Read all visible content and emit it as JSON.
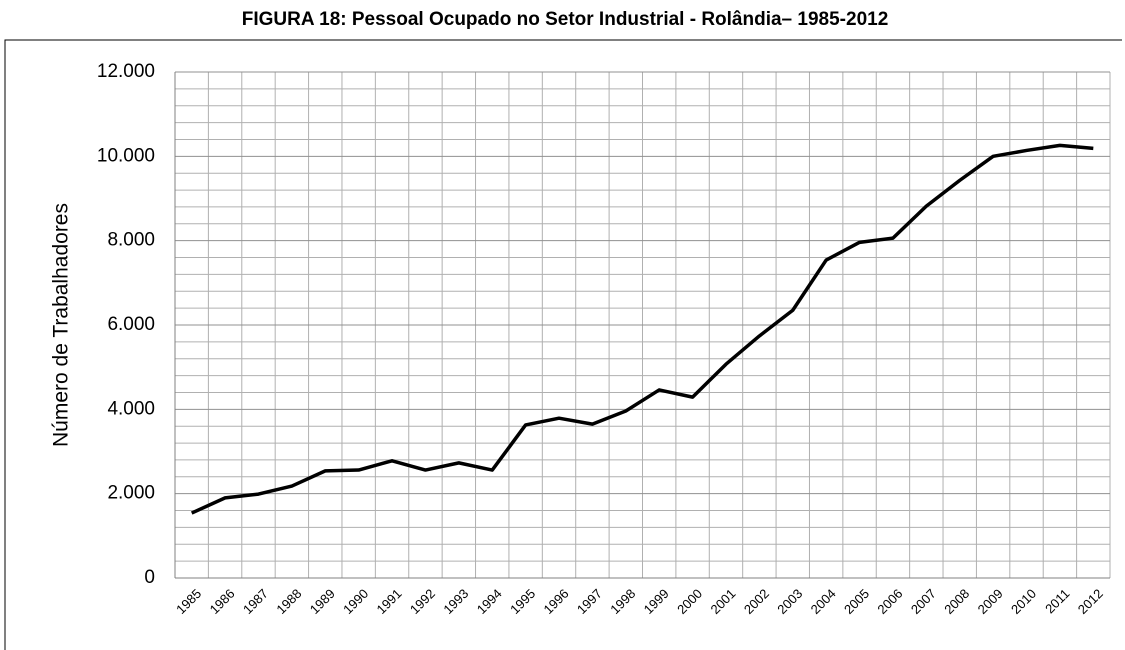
{
  "chart_data": {
    "type": "line",
    "title": "FIGURA 18: Pessoal Ocupado no Setor Industrial - Rolândia– 1985-2012",
    "y_label": "Número de Trabalhadores",
    "categories": [
      "1985",
      "1986",
      "1987",
      "1988",
      "1989",
      "1990",
      "1991",
      "1992",
      "1993",
      "1994",
      "1995",
      "1996",
      "1997",
      "1998",
      "1999",
      "2000",
      "2001",
      "2002",
      "2003",
      "2004",
      "2005",
      "2006",
      "2007",
      "2008",
      "2009",
      "2010",
      "2011",
      "2012"
    ],
    "series": [
      {
        "name": "Pessoal Ocupado",
        "color": "#000000",
        "values": [
          1540,
          1900,
          1990,
          2180,
          2540,
          2560,
          2780,
          2560,
          2730,
          2560,
          3630,
          3790,
          3650,
          3960,
          4460,
          4290,
          5070,
          5740,
          6350,
          7540,
          7960,
          8060,
          8820,
          9430,
          10000,
          10140,
          10260,
          10190
        ]
      }
    ],
    "ylim": [
      0,
      12000
    ],
    "yticks": [
      0,
      {
        "value": 2000,
        "label": "2.000"
      },
      {
        "value": 4000,
        "label": "4.000"
      },
      {
        "value": 6000,
        "label": "6.000"
      },
      {
        "value": 8000,
        "label": "8.000"
      },
      {
        "value": 10000,
        "label": "10.000"
      },
      {
        "value": 12000,
        "label": "12.000"
      }
    ],
    "minor_yticks": [
      400,
      800,
      1200,
      1600,
      2400,
      2800,
      3200,
      3600,
      4400,
      4800,
      5200,
      5600,
      6400,
      6800,
      7200,
      7600,
      8400,
      8800,
      9200,
      9600,
      10400,
      10800,
      11200,
      11600
    ],
    "grid": true
  }
}
